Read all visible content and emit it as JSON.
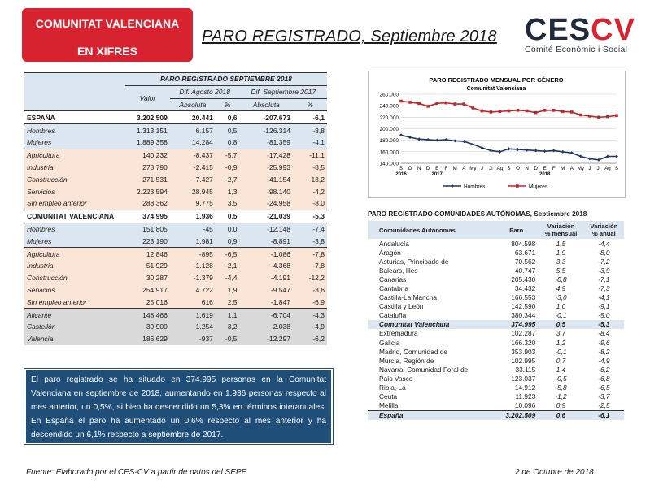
{
  "header": {
    "badge_line1": "COMUNITAT VALENCIANA",
    "badge_line2": "EN XIFRES",
    "title": "PARO REGISTRADO, Septiembre 2018",
    "logo_c": "CES",
    "logo_cv": "CV",
    "logo_sub": "Comité Econòmic i Social"
  },
  "left_table": {
    "group_title": "PARO REGISTRADO SEPTIEMBRE 2018",
    "col_valor": "Valor",
    "col_dif_ago": "Dif. Agosto 2018",
    "col_dif_sep": "Dif. Septiembre 2017",
    "col_abs": "Absoluta",
    "col_pct": "%",
    "rows": [
      {
        "label": "ESPAÑA",
        "valor": "3.202.509",
        "a1": "20.441",
        "p1": "0,6",
        "a2": "-207.673",
        "p2": "-6,1"
      },
      {
        "label": "Hombres",
        "valor": "1.313.151",
        "a1": "6.157",
        "p1": "0,5",
        "a2": "-126.314",
        "p2": "-8,8"
      },
      {
        "label": "Mujeres",
        "valor": "1.889.358",
        "a1": "14.284",
        "p1": "0,8",
        "a2": "-81.359",
        "p2": "-4,1"
      },
      {
        "label": "Agricultura",
        "valor": "140.232",
        "a1": "-8.437",
        "p1": "-5,7",
        "a2": "-17.428",
        "p2": "-11,1"
      },
      {
        "label": "Industria",
        "valor": "278.790",
        "a1": "-2.415",
        "p1": "-0,9",
        "a2": "-25.993",
        "p2": "-8,5"
      },
      {
        "label": "Construcción",
        "valor": "271.531",
        "a1": "-7.427",
        "p1": "-2,7",
        "a2": "-41.154",
        "p2": "-13,2"
      },
      {
        "label": "Servicios",
        "valor": "2.223.594",
        "a1": "28.945",
        "p1": "1,3",
        "a2": "-98.140",
        "p2": "-4,2"
      },
      {
        "label": "Sin empleo anterior",
        "valor": "288.362",
        "a1": "9.775",
        "p1": "3,5",
        "a2": "-24.958",
        "p2": "-8,0"
      },
      {
        "label": "COMUNITAT VALENCIANA",
        "valor": "374.995",
        "a1": "1.936",
        "p1": "0,5",
        "a2": "-21.039",
        "p2": "-5,3"
      },
      {
        "label": "Hombres",
        "valor": "151.805",
        "a1": "-45",
        "p1": "0,0",
        "a2": "-12.148",
        "p2": "-7,4"
      },
      {
        "label": "Mujeres",
        "valor": "223.190",
        "a1": "1.981",
        "p1": "0,9",
        "a2": "-8.891",
        "p2": "-3,8"
      },
      {
        "label": "Agricultura",
        "valor": "12.846",
        "a1": "-895",
        "p1": "-6,5",
        "a2": "-1.086",
        "p2": "-7,8"
      },
      {
        "label": "Industria",
        "valor": "51.929",
        "a1": "-1.128",
        "p1": "-2,1",
        "a2": "-4.368",
        "p2": "-7,8"
      },
      {
        "label": "Construcción",
        "valor": "30.287",
        "a1": "-1.379",
        "p1": "-4,4",
        "a2": "-4.191",
        "p2": "-12,2"
      },
      {
        "label": "Servicios",
        "valor": "254.917",
        "a1": "4.722",
        "p1": "1,9",
        "a2": "-9.547",
        "p2": "-3,6"
      },
      {
        "label": "Sin empleo anterior",
        "valor": "25.016",
        "a1": "616",
        "p1": "2,5",
        "a2": "-1.847",
        "p2": "-6,9"
      },
      {
        "label": "Alicante",
        "valor": "148.466",
        "a1": "1.619",
        "p1": "1,1",
        "a2": "-6.704",
        "p2": "-4,3"
      },
      {
        "label": "Castellón",
        "valor": "39.900",
        "a1": "1.254",
        "p1": "3,2",
        "a2": "-2.038",
        "p2": "-4,9"
      },
      {
        "label": "Valencia",
        "valor": "186.629",
        "a1": "-937",
        "p1": "-0,5",
        "a2": "-12.297",
        "p2": "-6,2"
      }
    ]
  },
  "summary": "El paro registrado se ha situado en 374.995 personas en la Comunitat Valenciana en septiembre de 2018, aumentando en 1.936 personas respecto al mes anterior, un 0,5%, si bien ha descendido un 5,3% en términos interanuales. En España el paro ha aumentado un 0,6% respecto al mes anterior y ha descendido un 6,1% respecto a septiembre de 2017.",
  "chart_data": {
    "type": "line",
    "title": "PARO REGISTRADO MENSUAL POR GÉNERO",
    "subtitle": "Comunitat Valenciana",
    "categories": [
      "S",
      "O",
      "N",
      "D",
      "E",
      "F",
      "M",
      "A",
      "My",
      "J",
      "Jl",
      "Ag",
      "S",
      "O",
      "N",
      "D",
      "E",
      "F",
      "M",
      "A",
      "My",
      "J",
      "Jl",
      "Ag",
      "S"
    ],
    "year_labels": [
      "2016",
      "2017",
      "2018"
    ],
    "ylim": [
      140000,
      260000
    ],
    "yticks": [
      "140.000",
      "160.000",
      "180.000",
      "200.000",
      "220.000",
      "240.000",
      "260.000"
    ],
    "colors": {
      "Hombres": "#1f3864",
      "Mujeres": "#c0272d"
    },
    "series": [
      {
        "name": "Hombres",
        "values": [
          189000,
          185000,
          182000,
          181000,
          180000,
          181000,
          179000,
          178000,
          173000,
          167000,
          162000,
          160000,
          165000,
          164000,
          163000,
          162000,
          161000,
          162000,
          160000,
          158000,
          152000,
          148000,
          146000,
          152000,
          152000
        ]
      },
      {
        "name": "Mujeres",
        "values": [
          248000,
          246000,
          244000,
          239000,
          244000,
          245000,
          243000,
          243000,
          236000,
          231000,
          229000,
          230000,
          231000,
          232000,
          231000,
          228000,
          232000,
          232000,
          230000,
          229000,
          224000,
          222000,
          220000,
          221000,
          223000
        ]
      }
    ]
  },
  "right_table": {
    "title": "PARO REGISTRADO COMUNIDADES AUTÓNOMAS, Septiembre 2018",
    "h_ca": "Comunidades Autónomas",
    "h_paro": "Paro",
    "h_var1a": "Variación",
    "h_var1b": "% mensual",
    "h_var2a": "Variación",
    "h_var2b": "% anual",
    "rows": [
      {
        "ca": "Andalucía",
        "paro": "804.598",
        "m": "1,5",
        "a": "-4,4"
      },
      {
        "ca": "Aragón",
        "paro": "63.671",
        "m": "1,9",
        "a": "-8,0"
      },
      {
        "ca": "Asturias, Principado de",
        "paro": "70.562",
        "m": "3,3",
        "a": "-7,2"
      },
      {
        "ca": "Balears, Illes",
        "paro": "40.747",
        "m": "5,5",
        "a": "-3,9"
      },
      {
        "ca": "Canarias",
        "paro": "205.430",
        "m": "-0,8",
        "a": "-7,1"
      },
      {
        "ca": "Cantabria",
        "paro": "34.432",
        "m": "4,9",
        "a": "-7,3"
      },
      {
        "ca": "Castilla-La Mancha",
        "paro": "166.553",
        "m": "-3,0",
        "a": "-4,1"
      },
      {
        "ca": "Castilla y León",
        "paro": "142.590",
        "m": "1,0",
        "a": "-9,1"
      },
      {
        "ca": "Cataluña",
        "paro": "380.344",
        "m": "-0,1",
        "a": "-5,0"
      },
      {
        "ca": "Comunitat Valenciana",
        "paro": "374.995",
        "m": "0,5",
        "a": "-5,3"
      },
      {
        "ca": "Extremadura",
        "paro": "102.287",
        "m": "3,7",
        "a": "-8,4"
      },
      {
        "ca": "Galicia",
        "paro": "166.320",
        "m": "1,2",
        "a": "-9,6"
      },
      {
        "ca": "Madrid, Comunidad de",
        "paro": "353.903",
        "m": "-0,1",
        "a": "-8,2"
      },
      {
        "ca": "Murcia, Región de",
        "paro": "102.995",
        "m": "0,7",
        "a": "-4,9"
      },
      {
        "ca": "Navarra, Comunidad Foral de",
        "paro": "33.115",
        "m": "1,4",
        "a": "-6,2"
      },
      {
        "ca": "País Vasco",
        "paro": "123.037",
        "m": "-0,5",
        "a": "-6,8"
      },
      {
        "ca": "Rioja, La",
        "paro": "14.912",
        "m": "-5,8",
        "a": "-6,5"
      },
      {
        "ca": "Ceuta",
        "paro": "11.923",
        "m": "-1,2",
        "a": "-3,7"
      },
      {
        "ca": "Melilla",
        "paro": "10.096",
        "m": "0,9",
        "a": "-2,5"
      },
      {
        "ca": "España",
        "paro": "3.202.509",
        "m": "0,6",
        "a": "-6,1"
      }
    ]
  },
  "footer": {
    "source": "Fuente: Elaborado por el CES-CV a partir de datos del SEPE",
    "date": "2 de Octubre de 2018"
  }
}
